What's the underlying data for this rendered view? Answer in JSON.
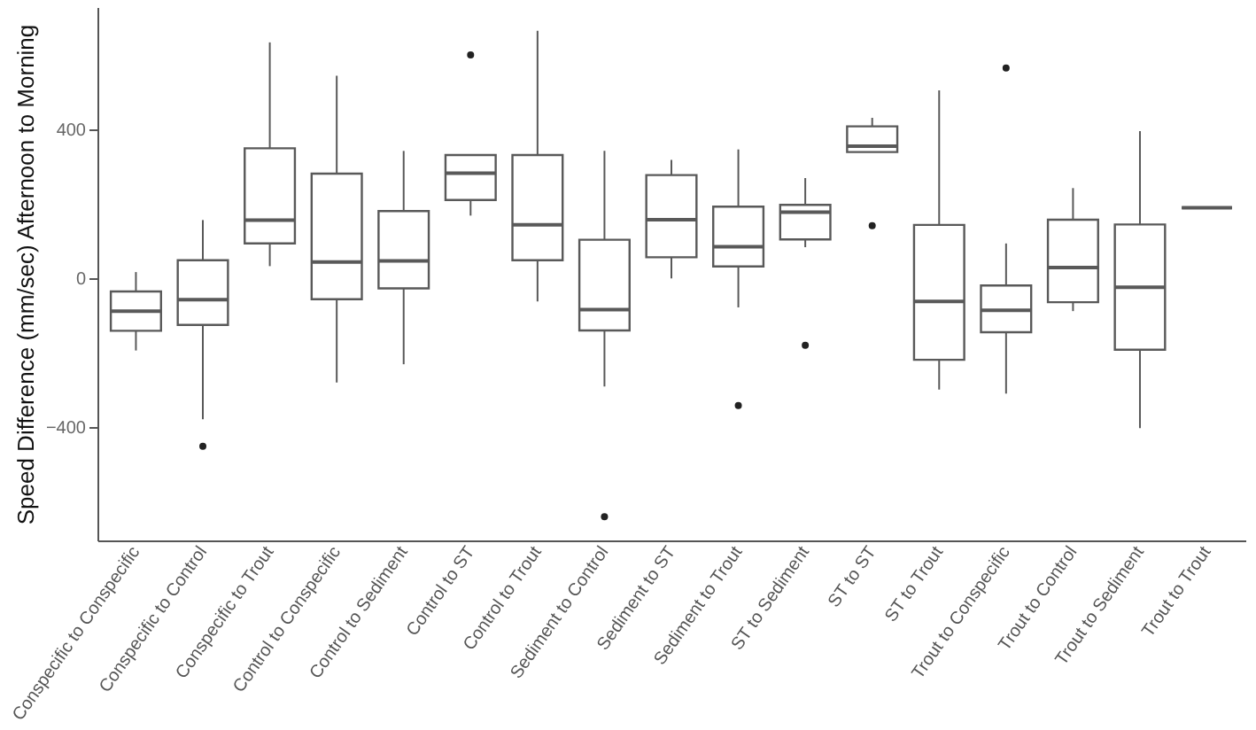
{
  "chart_data": {
    "type": "box",
    "ylabel": "Speed Difference (mm/sec) Afternoon to Morning",
    "categories": [
      "Conspecific to Conspecific",
      "Conspecific to Control",
      "Conspecific to Trout",
      "Control to Conspecific",
      "Control to Sediment",
      "Control to ST",
      "Control to Trout",
      "Sediment to Control",
      "Sediment to ST",
      "Sediment to Trout",
      "ST to Sediment",
      "ST to ST",
      "ST to Trout",
      "Trout to Conspecific",
      "Trout to Control",
      "Trout to Sediment",
      "Trout to Trout"
    ],
    "ylim": [
      -705,
      730
    ],
    "yticks": [
      -400,
      0,
      400
    ],
    "grid": false,
    "series": [
      {
        "color": "#595959",
        "boxes": [
          {
            "low": -194,
            "q1": -141,
            "median": -88,
            "q3": -35,
            "high": 17
          },
          {
            "low": -379,
            "q1": -125,
            "median": -57,
            "q3": 49,
            "high": 157,
            "outliers": [
              -452
            ]
          },
          {
            "low": 33,
            "q1": 94,
            "median": 157,
            "q3": 350,
            "high": 635
          },
          {
            "low": -280,
            "q1": -56,
            "median": 44,
            "q3": 282,
            "high": 545
          },
          {
            "low": -231,
            "q1": -27,
            "median": 47,
            "q3": 181,
            "high": 343
          },
          {
            "low": 169,
            "q1": 211,
            "median": 283,
            "q3": 332,
            "high": 333,
            "outliers": [
              601
            ]
          },
          {
            "low": -62,
            "q1": 49,
            "median": 144,
            "q3": 332,
            "high": 666
          },
          {
            "low": -291,
            "q1": -140,
            "median": -84,
            "q3": 104,
            "high": 343,
            "outliers": [
              -641
            ]
          },
          {
            "low": 0,
            "q1": 57,
            "median": 158,
            "q3": 278,
            "high": 319
          },
          {
            "low": -78,
            "q1": 32,
            "median": 85,
            "q3": 193,
            "high": 347,
            "outliers": [
              -342
            ]
          },
          {
            "low": 84,
            "q1": 105,
            "median": 178,
            "q3": 198,
            "high": 270,
            "outliers": [
              -180
            ]
          },
          {
            "low": 340,
            "q1": 340,
            "median": 356,
            "q3": 409,
            "high": 432,
            "outliers": [
              142
            ]
          },
          {
            "low": -299,
            "q1": -219,
            "median": -62,
            "q3": 144,
            "high": 506
          },
          {
            "low": -310,
            "q1": -145,
            "median": -86,
            "q3": -19,
            "high": 94,
            "outliers": [
              566
            ]
          },
          {
            "low": -88,
            "q1": -64,
            "median": 29,
            "q3": 158,
            "high": 243
          },
          {
            "low": -403,
            "q1": -192,
            "median": -24,
            "q3": 145,
            "high": 396
          },
          {
            "low": 190,
            "q1": 190,
            "median": 190,
            "q3": 190,
            "high": 190
          }
        ]
      }
    ]
  }
}
